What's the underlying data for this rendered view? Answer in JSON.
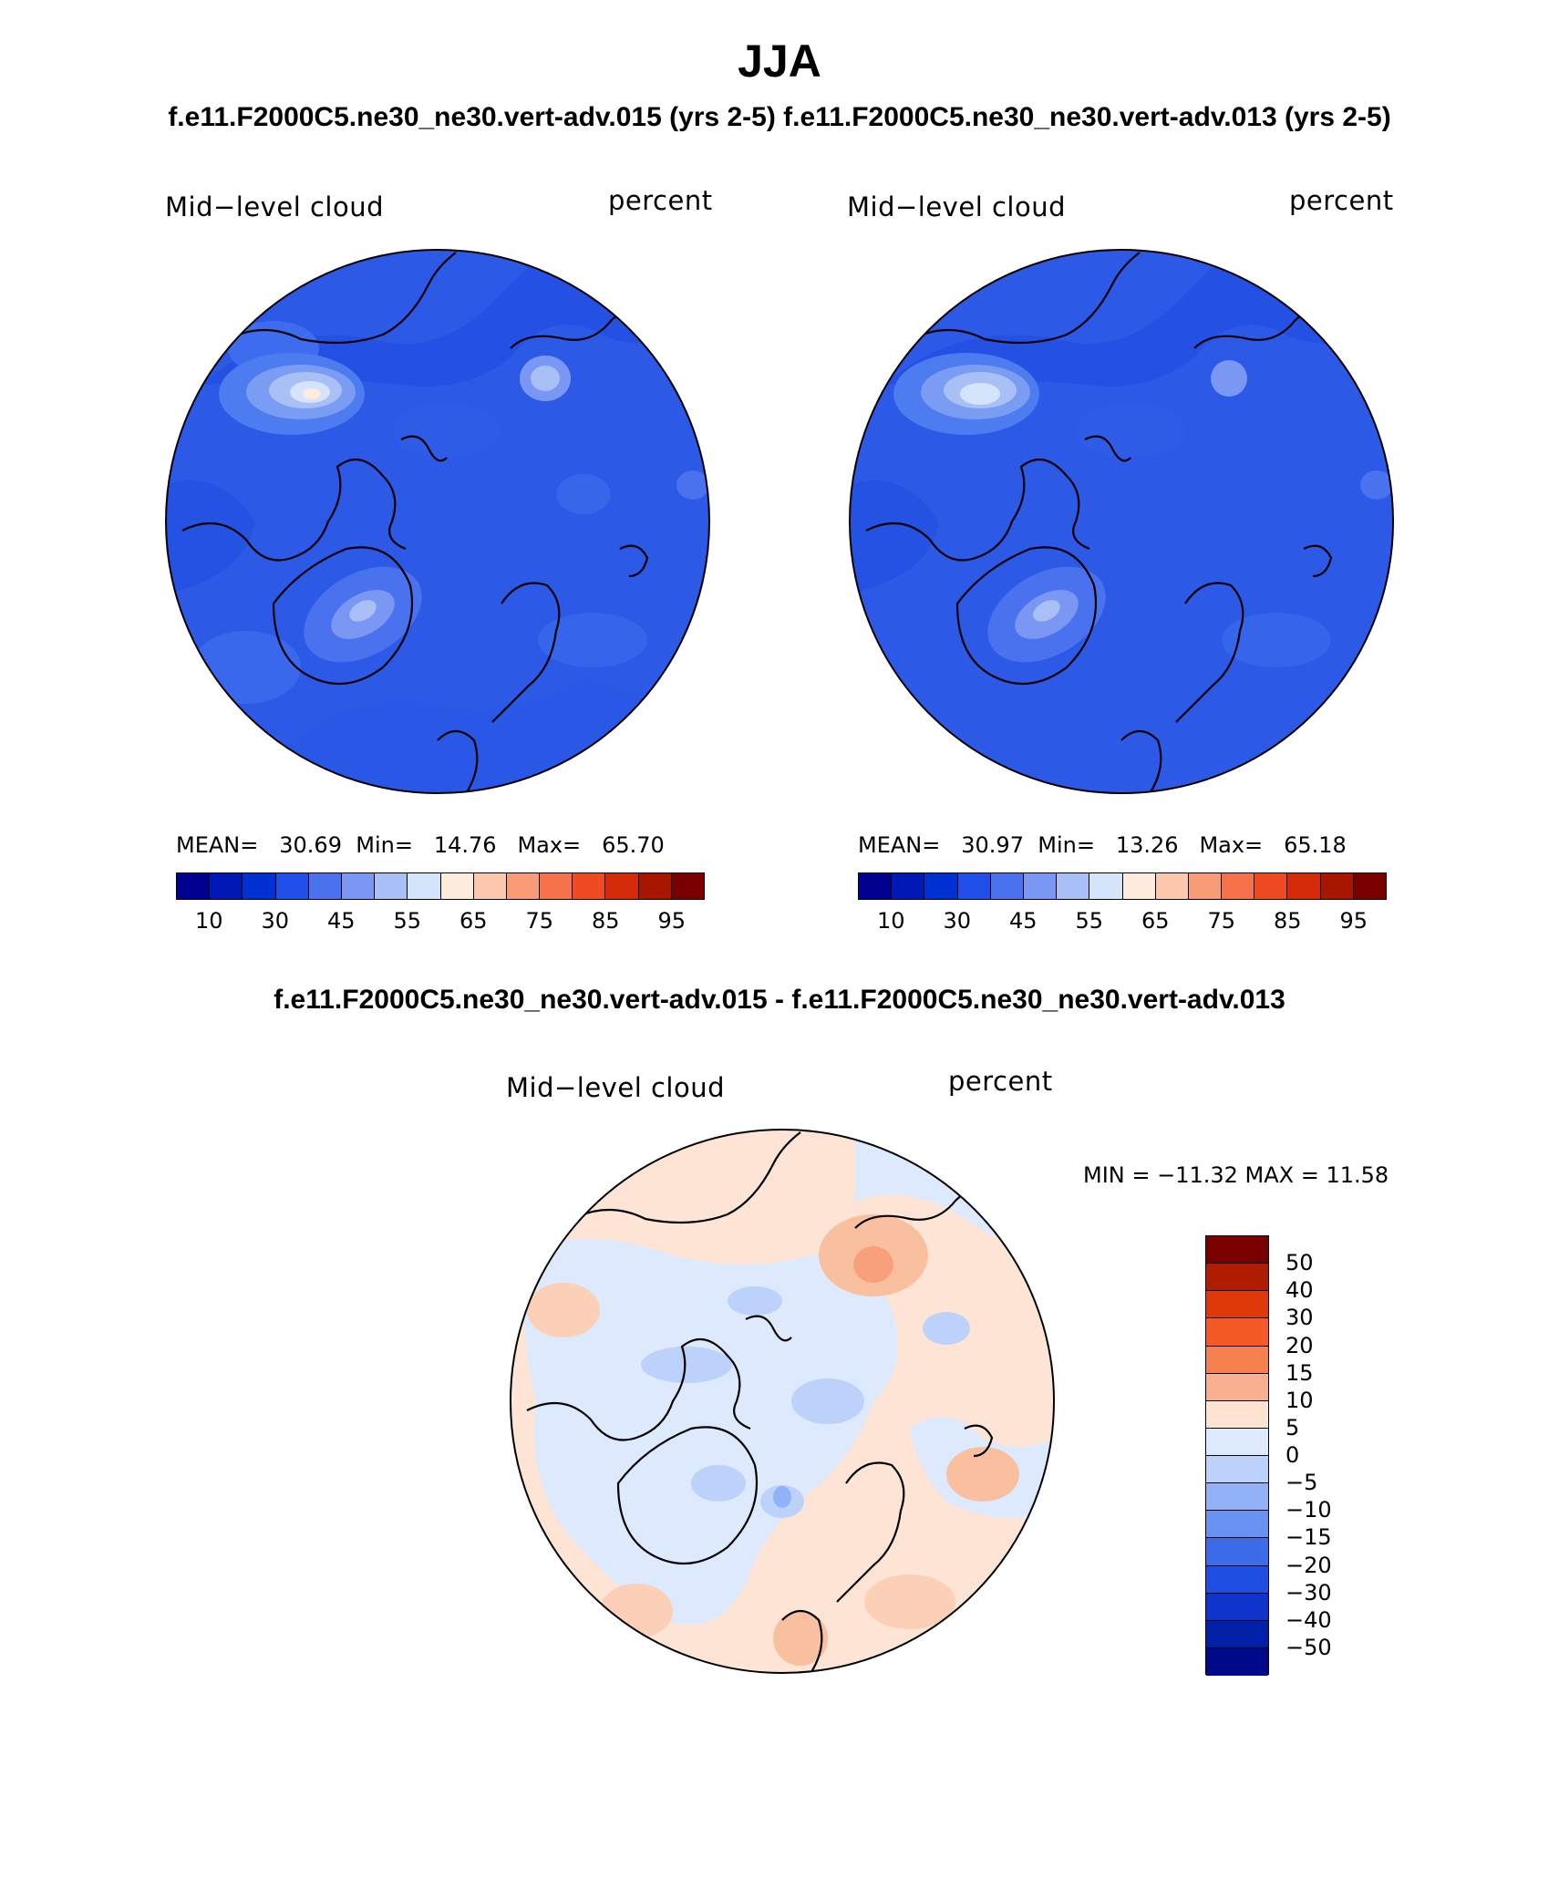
{
  "header": {
    "title": "JJA",
    "case_titles": "f.e11.F2000C5.ne30_ne30.vert-adv.015 (yrs 2-5) f.e11.F2000C5.ne30_ne30.vert-adv.013 (yrs 2-5)",
    "diff_title": "f.e11.F2000C5.ne30_ne30.vert-adv.015 - f.e11.F2000C5.ne30_ne30.vert-adv.013"
  },
  "panels": [
    {
      "variable": "Mid−level cloud",
      "units": "percent",
      "stats": {
        "mean_label": "MEAN=",
        "mean": "30.69",
        "min_label": "Min=",
        "min": "14.76",
        "max_label": "Max=",
        "max": "65.70"
      }
    },
    {
      "variable": "Mid−level cloud",
      "units": "percent",
      "stats": {
        "mean_label": "MEAN=",
        "mean": "30.97",
        "min_label": "Min=",
        "min": "13.26",
        "max_label": "Max=",
        "max": "65.18"
      }
    }
  ],
  "diff_panel": {
    "variable": "Mid−level cloud",
    "units": "percent",
    "minmax": "MIN = −11.32 MAX =  11.58"
  },
  "colorbar_main": {
    "colors": [
      "#00008f",
      "#0018b4",
      "#0031d2",
      "#1f4fe8",
      "#4a72ef",
      "#7a98f3",
      "#a9c0f7",
      "#d4e4fb",
      "#fdebdc",
      "#fbc8ad",
      "#f89c78",
      "#f5714a",
      "#ef4b22",
      "#d32a0a",
      "#a91600",
      "#7a0000"
    ],
    "tick_labels": [
      "10",
      "30",
      "45",
      "55",
      "65",
      "75",
      "85",
      "95"
    ],
    "tick_after_box": [
      1,
      3,
      5,
      7,
      9,
      11,
      13,
      15
    ]
  },
  "colorbar_diff": {
    "colors": [
      "#7a0000",
      "#b01c00",
      "#de3a09",
      "#f35a26",
      "#f7804f",
      "#f9b090",
      "#fde3d2",
      "#dde9fc",
      "#bcd2fa",
      "#91b2f6",
      "#6792f1",
      "#3d6ceb",
      "#1f4ee2",
      "#0e34cc",
      "#0020a8",
      "#00098a"
    ],
    "tick_labels": [
      "50",
      "40",
      "30",
      "20",
      "15",
      "10",
      "5",
      "0",
      "−5",
      "−10",
      "−15",
      "−20",
      "−30",
      "−40",
      "−50"
    ]
  },
  "map_fill": {
    "base_control": "#2c5ae6",
    "base_diff_low": "#dceafc",
    "base_diff_high": "#fde4d4"
  }
}
